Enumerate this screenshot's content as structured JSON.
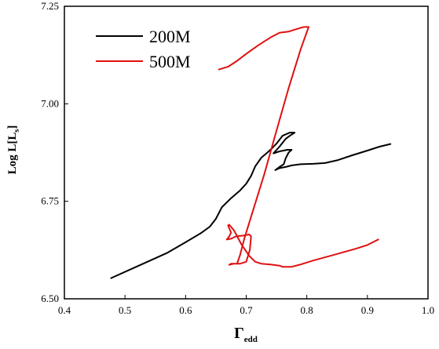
{
  "chart_data": {
    "type": "line",
    "xlabel": {
      "main": "Γ",
      "sub": "edd"
    },
    "ylabel": {
      "main": "Log L[L",
      "sub": "s",
      "close": "]"
    },
    "xlim": [
      0.4,
      1.0
    ],
    "ylim": [
      6.5,
      7.25
    ],
    "x_ticks": [
      0.4,
      0.5,
      0.6,
      0.7,
      0.8,
      0.9,
      1.0
    ],
    "x_tick_labels": [
      "0.4",
      "0.5",
      "0.6",
      "0.7",
      "0.8",
      "0.9",
      "1.0"
    ],
    "y_ticks": [
      6.5,
      6.75,
      7.0,
      7.25
    ],
    "y_tick_labels": [
      "6.50",
      "6.75",
      "7.00",
      "7.25"
    ],
    "grid": false,
    "legend_position": "top-left",
    "series": [
      {
        "name": "200M",
        "color": "#000000",
        "points": [
          [
            0.477,
            6.553
          ],
          [
            0.52,
            6.583
          ],
          [
            0.57,
            6.618
          ],
          [
            0.6,
            6.645
          ],
          [
            0.625,
            6.668
          ],
          [
            0.64,
            6.685
          ],
          [
            0.65,
            6.705
          ],
          [
            0.66,
            6.735
          ],
          [
            0.675,
            6.758
          ],
          [
            0.69,
            6.778
          ],
          [
            0.7,
            6.795
          ],
          [
            0.708,
            6.815
          ],
          [
            0.715,
            6.84
          ],
          [
            0.725,
            6.862
          ],
          [
            0.735,
            6.875
          ],
          [
            0.742,
            6.885
          ],
          [
            0.75,
            6.898
          ],
          [
            0.76,
            6.918
          ],
          [
            0.772,
            6.926
          ],
          [
            0.78,
            6.926
          ],
          [
            0.772,
            6.918
          ],
          [
            0.765,
            6.91
          ],
          [
            0.755,
            6.89
          ],
          [
            0.745,
            6.873
          ],
          [
            0.755,
            6.878
          ],
          [
            0.768,
            6.882
          ],
          [
            0.775,
            6.882
          ],
          [
            0.77,
            6.875
          ],
          [
            0.765,
            6.86
          ],
          [
            0.762,
            6.845
          ],
          [
            0.755,
            6.838
          ],
          [
            0.748,
            6.83
          ],
          [
            0.755,
            6.835
          ],
          [
            0.765,
            6.838
          ],
          [
            0.775,
            6.842
          ],
          [
            0.79,
            6.845
          ],
          [
            0.81,
            6.846
          ],
          [
            0.83,
            6.848
          ],
          [
            0.85,
            6.855
          ],
          [
            0.875,
            6.868
          ],
          [
            0.9,
            6.88
          ],
          [
            0.92,
            6.89
          ],
          [
            0.938,
            6.897
          ]
        ]
      },
      {
        "name": "500M",
        "color": "#e01010",
        "points": [
          [
            0.655,
            7.088
          ],
          [
            0.67,
            7.095
          ],
          [
            0.685,
            7.11
          ],
          [
            0.7,
            7.128
          ],
          [
            0.72,
            7.15
          ],
          [
            0.74,
            7.17
          ],
          [
            0.755,
            7.182
          ],
          [
            0.77,
            7.185
          ],
          [
            0.78,
            7.19
          ],
          [
            0.795,
            7.197
          ],
          [
            0.803,
            7.197
          ],
          [
            0.79,
            7.14
          ],
          [
            0.77,
            7.04
          ],
          [
            0.748,
            6.92
          ],
          [
            0.73,
            6.82
          ],
          [
            0.71,
            6.72
          ],
          [
            0.697,
            6.655
          ],
          [
            0.69,
            6.613
          ],
          [
            0.685,
            6.59
          ],
          [
            0.675,
            6.59
          ],
          [
            0.672,
            6.587
          ],
          [
            0.68,
            6.59
          ],
          [
            0.69,
            6.59
          ],
          [
            0.7,
            6.595
          ],
          [
            0.706,
            6.625
          ],
          [
            0.708,
            6.66
          ],
          [
            0.705,
            6.665
          ],
          [
            0.695,
            6.662
          ],
          [
            0.683,
            6.66
          ],
          [
            0.675,
            6.654
          ],
          [
            0.668,
            6.652
          ],
          [
            0.672,
            6.66
          ],
          [
            0.675,
            6.67
          ],
          [
            0.67,
            6.688
          ],
          [
            0.672,
            6.69
          ],
          [
            0.68,
            6.675
          ],
          [
            0.692,
            6.64
          ],
          [
            0.705,
            6.61
          ],
          [
            0.715,
            6.595
          ],
          [
            0.725,
            6.59
          ],
          [
            0.74,
            6.588
          ],
          [
            0.755,
            6.585
          ],
          [
            0.76,
            6.582
          ],
          [
            0.775,
            6.582
          ],
          [
            0.79,
            6.588
          ],
          [
            0.81,
            6.598
          ],
          [
            0.85,
            6.615
          ],
          [
            0.88,
            6.628
          ],
          [
            0.9,
            6.638
          ],
          [
            0.918,
            6.652
          ]
        ]
      }
    ]
  }
}
